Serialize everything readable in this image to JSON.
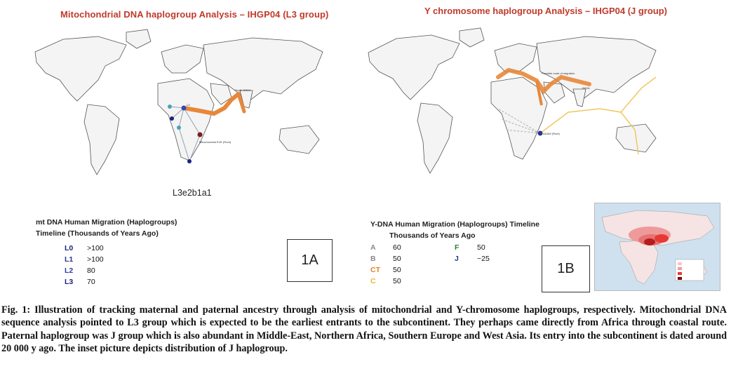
{
  "panel_a": {
    "title": "Mitochondrial DNA haplogroup Analysis – IHGP04 (L3 group)",
    "haplogroup": "L3e2b1a1",
    "map_labels": {
      "mito_eve": "Mitochondrial EVE (Root)",
      "south_india": "South INDIA",
      "l3": "L3"
    },
    "timeline_title_1": "mt DNA Human Migration (Haplogroups)",
    "timeline_title_2": "Timeline (Thousands of Years Ago)",
    "timeline": [
      {
        "code": "L0",
        "value": ">100",
        "color": "#1a237e"
      },
      {
        "code": "L1",
        "value": ">100",
        "color": "#283593"
      },
      {
        "code": "L2",
        "value": "80",
        "color": "#303f9f"
      },
      {
        "code": "L3",
        "value": "70",
        "color": "#1a237e"
      }
    ],
    "box_label": "1A"
  },
  "panel_b": {
    "title": "Y chromosome haplogroup Analysis – IHGP04 (J group)",
    "map_labels": {
      "adam": "ADAM (Root)",
      "possible_route": "Possible route of migration",
      "india": "INDIA"
    },
    "timeline_title_1": "Y-DNA Human Migration (Haplogroups) Timeline",
    "timeline_title_2": "Thousands of Years Ago",
    "timeline_left": [
      {
        "code": "A",
        "value": "60",
        "color": "#888888"
      },
      {
        "code": "B",
        "value": "50",
        "color": "#888888"
      },
      {
        "code": "CT",
        "value": "50",
        "color": "#e67e22"
      },
      {
        "code": "C",
        "value": "50",
        "color": "#f0b429"
      }
    ],
    "timeline_right": [
      {
        "code": "F",
        "value": "50",
        "color": "#2e7d32"
      },
      {
        "code": "J",
        "value": "~25",
        "color": "#283593"
      }
    ],
    "box_label": "1B"
  },
  "caption": "Fig. 1: Illustration of tracking maternal and paternal ancestry through analysis of mitochondrial and Y-chromosome haplogroups, respectively. Mitochondrial DNA sequence analysis pointed to L3 group which is expected to be the earliest entrants to the subcontinent. They perhaps came directly from Africa through coastal route. Paternal haplogroup was J group which is also abundant in Middle-East, Northern Africa, Southern Europe and West Asia. Its entry into the subcontinent is dated around 20 000 y ago. The inset picture depicts distribution of J haplogroup.",
  "colors": {
    "title": "#c0392b",
    "route_orange": "#e8873a",
    "map_fill": "#f4f4f4",
    "map_stroke": "#555555"
  }
}
